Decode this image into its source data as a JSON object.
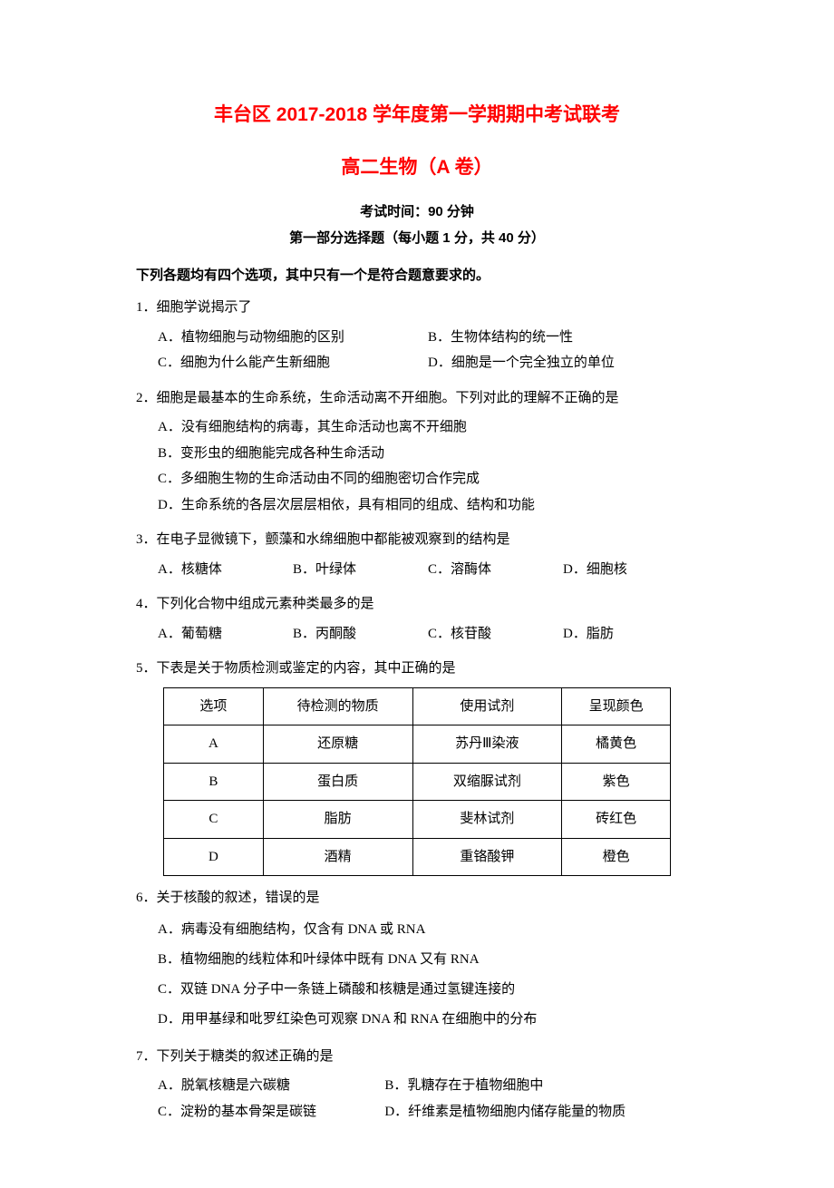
{
  "title_main": "丰台区 2017-2018 学年度第一学期期中考试联考",
  "title_sub": "高二生物（A 卷）",
  "exam_time": "考试时间：90 分钟",
  "section_header": "第一部分选择题（每小题 1 分，共 40 分）",
  "instruction": "下列各题均有四个选项，其中只有一个是符合题意要求的。",
  "questions": {
    "q1": {
      "text": "1．细胞学说揭示了",
      "a": "A．植物细胞与动物细胞的区别",
      "b": "B．生物体结构的统一性",
      "c": "C．细胞为什么能产生新细胞",
      "d": "D．细胞是一个完全独立的单位"
    },
    "q2": {
      "text": "2．细胞是最基本的生命系统，生命活动离不开细胞。下列对此的理解不正确的是",
      "a": "A．没有细胞结构的病毒，其生命活动也离不开细胞",
      "b": "B．变形虫的细胞能完成各种生命活动",
      "c": "C．多细胞生物的生命活动由不同的细胞密切合作完成",
      "d": "D．生命系统的各层次层层相依，具有相同的组成、结构和功能"
    },
    "q3": {
      "text": "3．在电子显微镜下，颤藻和水绵细胞中都能被观察到的结构是",
      "a": "A．核糖体",
      "b": "B．叶绿体",
      "c": "C．溶酶体",
      "d": "D．细胞核"
    },
    "q4": {
      "text": "4．下列化合物中组成元素种类最多的是",
      "a": "A．葡萄糖",
      "b": "B．丙酮酸",
      "c": "C．核苷酸",
      "d": "D．脂肪"
    },
    "q5": {
      "text": "5．下表是关于物质检测或鉴定的内容，其中正确的是"
    },
    "q6": {
      "text": "6．关于核酸的叙述，错误的是",
      "a": "A．病毒没有细胞结构，仅含有 DNA 或 RNA",
      "b": "B．植物细胞的线粒体和叶绿体中既有 DNA 又有 RNA",
      "c": "C．双链 DNA 分子中一条链上磷酸和核糖是通过氢键连接的",
      "d": "D．用甲基绿和吡罗红染色可观察 DNA 和 RNA 在细胞中的分布"
    },
    "q7": {
      "text": "7．下列关于糖类的叙述正确的是",
      "a": "A．脱氧核糖是六碳糖",
      "b": "B．乳糖存在于植物细胞中",
      "c": "C．淀粉的基本骨架是碳链",
      "d": "D．纤维素是植物细胞内储存能量的物质"
    }
  },
  "table": {
    "headers": [
      "选项",
      "待检测的物质",
      "使用试剂",
      "呈现颜色"
    ],
    "rows": [
      [
        "A",
        "还原糖",
        "苏丹Ⅲ染液",
        "橘黄色"
      ],
      [
        "B",
        "蛋白质",
        "双缩脲试剂",
        "紫色"
      ],
      [
        "C",
        "脂肪",
        "斐林试剂",
        "砖红色"
      ],
      [
        "D",
        "酒精",
        "重铬酸钾",
        "橙色"
      ]
    ]
  }
}
